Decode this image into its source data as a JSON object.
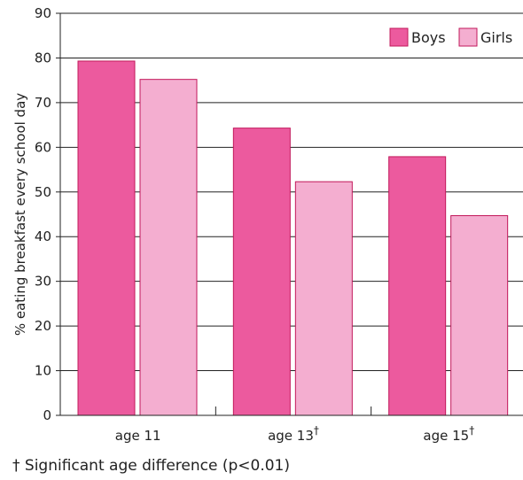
{
  "chart_data": {
    "type": "bar",
    "categories": [
      "age 11",
      "age 13",
      "age 15"
    ],
    "category_marks": [
      "",
      "†",
      "†"
    ],
    "series": [
      {
        "name": "Boys",
        "values": [
          79.3,
          64.3,
          57.9
        ],
        "color": "#ec5a9e"
      },
      {
        "name": "Girls",
        "values": [
          75.2,
          52.3,
          44.7
        ],
        "color": "#f4aed0"
      }
    ],
    "ylabel": "% eating breakfast every school day",
    "xlabel": "",
    "ylim": [
      0,
      90
    ],
    "yticks": [
      0,
      10,
      20,
      30,
      40,
      50,
      60,
      70,
      80,
      90
    ],
    "grid": true,
    "legend_position": "top-right",
    "bar_stroke_color": "#c2185b"
  },
  "footnote": "† Significant age difference (p<0.01)"
}
